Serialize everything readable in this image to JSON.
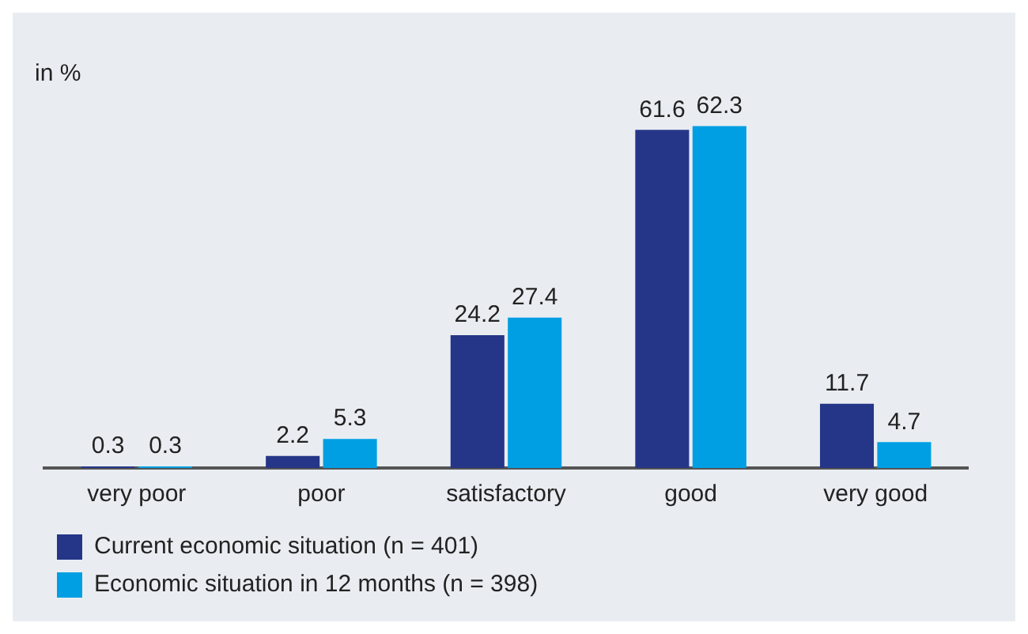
{
  "chart_data": {
    "type": "bar",
    "ylabel": "in %",
    "categories": [
      "very poor",
      "poor",
      "satisfactory",
      "good",
      "very good"
    ],
    "series": [
      {
        "name": "Current economic situation (n = 401)",
        "color": "#253688",
        "values": [
          0.3,
          2.2,
          24.2,
          61.6,
          11.7
        ]
      },
      {
        "name": "Economic situation in 12 months (n = 398)",
        "color": "#009fe3",
        "values": [
          0.3,
          5.3,
          27.4,
          62.3,
          4.7
        ]
      }
    ],
    "data_labels": true,
    "legend": "bottom",
    "grid": false
  }
}
